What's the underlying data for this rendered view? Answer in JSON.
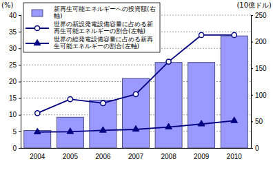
{
  "chart_data": {
    "type": "combo",
    "y_label": "(%)",
    "y2_label": "(10億ドル)",
    "categories": [
      "2004",
      "2005",
      "2006",
      "2007",
      "2008",
      "2009",
      "2010"
    ],
    "series": [
      {
        "name": "新再生可能エネルギーへの投資額(右軸)",
        "type": "bar",
        "axis": "y2",
        "color": "#9999ff",
        "values": [
          33,
          58,
          90,
          131,
          161,
          161,
          211
        ]
      },
      {
        "name": "世界の新設発電設備容量に占める新再生可能エネルギーの割合(左軸)",
        "type": "line",
        "marker": "circle",
        "color": "#000080",
        "values": [
          10.5,
          14.7,
          13.5,
          16.2,
          26,
          34,
          34
        ]
      },
      {
        "name": "世界の総発電設備容量に占める新再生可能エネルギーの割合(左軸)",
        "type": "line",
        "marker": "triangle",
        "color": "#000080",
        "values": [
          4.8,
          4.9,
          5.3,
          5.6,
          6.3,
          7.2,
          8.2
        ]
      }
    ],
    "ylim": [
      0,
      40
    ],
    "yticks": [
      0,
      5,
      10,
      15,
      20,
      25,
      30,
      35,
      40
    ],
    "y2lim": [
      0,
      250
    ],
    "y2ticks": [
      0,
      50,
      100,
      150,
      200,
      250
    ],
    "grid": true,
    "legend": "top-left"
  }
}
